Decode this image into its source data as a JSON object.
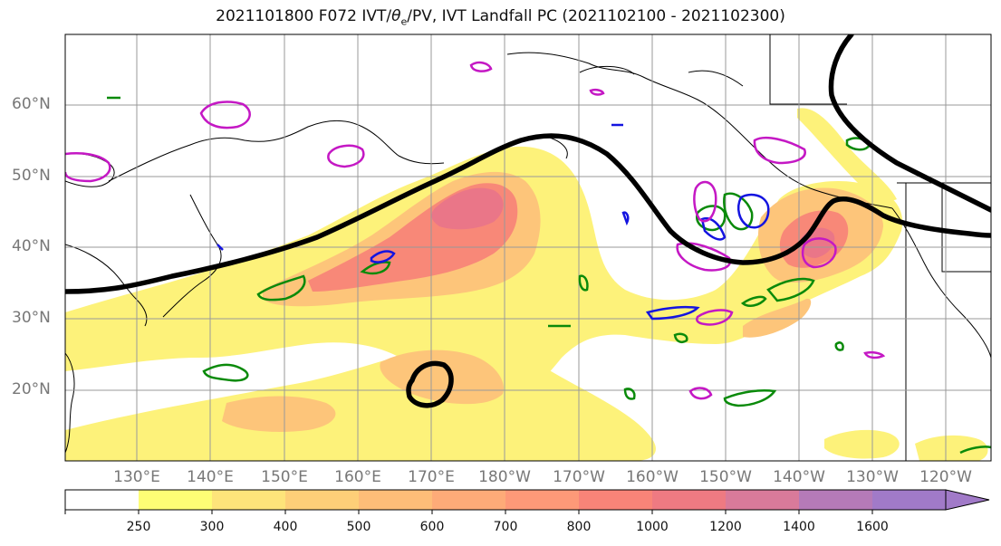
{
  "title": {
    "prefix": "2021101800 F072 IVT/",
    "theta": "θ",
    "theta_sub": "e",
    "suffix": "/PV, IVT Landfall PC (2021102100 - 2021102300)"
  },
  "lat_labels": [
    "60°N",
    "50°N",
    "40°N",
    "30°N",
    "20°N"
  ],
  "lon_labels": [
    "130°E",
    "140°E",
    "150°E",
    "160°E",
    "170°E",
    "180°W",
    "170°W",
    "160°W",
    "150°W",
    "140°W",
    "130°W",
    "120°W"
  ],
  "colorbar": {
    "ticks": [
      "250",
      "300",
      "400",
      "500",
      "600",
      "700",
      "800",
      "1000",
      "1200",
      "1400",
      "1600"
    ],
    "colors": [
      "#ffffff",
      "#fdfd75",
      "#fde47a",
      "#fdcf78",
      "#fdbd78",
      "#fdab78",
      "#fd9978",
      "#f88478",
      "#ee7a82",
      "#d97a9a",
      "#b57ab8",
      "#a17ac8"
    ]
  },
  "colors": {
    "ivt_low": "#fdf27a",
    "ivt_mid": "#fdc57a",
    "ivt_high": "#f88878",
    "ivt_peak": "#ea7688",
    "pv_green": "#0a8a0a",
    "pv_blue": "#1414e0",
    "theta_magenta": "#c418c4",
    "pc_contour": "#000000",
    "grid": "#999999"
  }
}
